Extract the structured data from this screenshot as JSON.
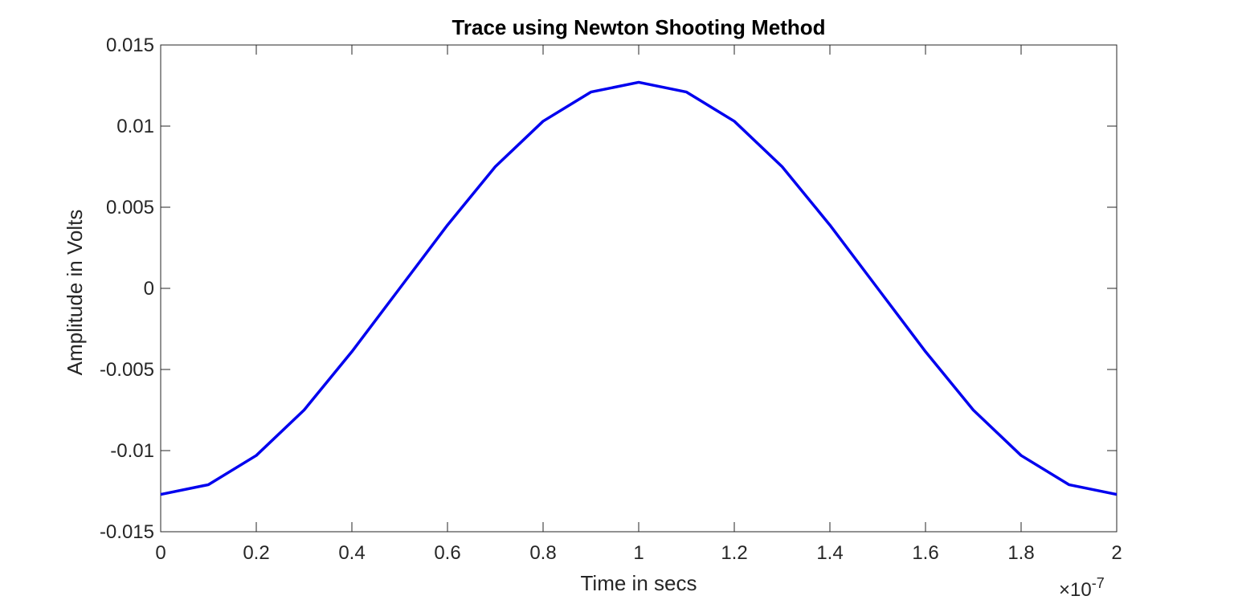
{
  "chart_data": {
    "type": "line",
    "title": "Trace using Newton Shooting Method",
    "xlabel": "Time in secs",
    "ylabel": "Amplitude in Volts",
    "x_exponent_label": {
      "base": "×10",
      "exponent": "-7"
    },
    "xlim": [
      0,
      2e-07
    ],
    "ylim": [
      -0.015,
      0.015
    ],
    "x_ticks": [
      0,
      2e-08,
      4e-08,
      6e-08,
      8e-08,
      1e-07,
      1.2e-07,
      1.4e-07,
      1.6e-07,
      1.8e-07,
      2e-07
    ],
    "x_tick_labels": [
      "0",
      "0.2",
      "0.4",
      "0.6",
      "0.8",
      "1",
      "1.2",
      "1.4",
      "1.6",
      "1.8",
      "2"
    ],
    "y_ticks": [
      -0.015,
      -0.01,
      -0.005,
      0,
      0.005,
      0.01,
      0.015
    ],
    "y_tick_labels": [
      "-0.015",
      "-0.01",
      "-0.005",
      "0",
      "0.005",
      "0.01",
      "0.015"
    ],
    "grid": false,
    "series": [
      {
        "color": "#0000ee",
        "x": [
          0,
          1e-08,
          2e-08,
          3e-08,
          4e-08,
          5e-08,
          6e-08,
          7e-08,
          8e-08,
          9e-08,
          1e-07,
          1.1e-07,
          1.2e-07,
          1.3e-07,
          1.4e-07,
          1.5e-07,
          1.6e-07,
          1.7e-07,
          1.8e-07,
          1.9e-07,
          2e-07
        ],
        "y": [
          -0.0127,
          -0.0121,
          -0.0103,
          -0.0075,
          -0.0039,
          0.0,
          0.0039,
          0.0075,
          0.0103,
          0.0121,
          0.0127,
          0.0121,
          0.0103,
          0.0075,
          0.0039,
          0.0,
          -0.0039,
          -0.0075,
          -0.0103,
          -0.0121,
          -0.0127
        ]
      }
    ]
  }
}
